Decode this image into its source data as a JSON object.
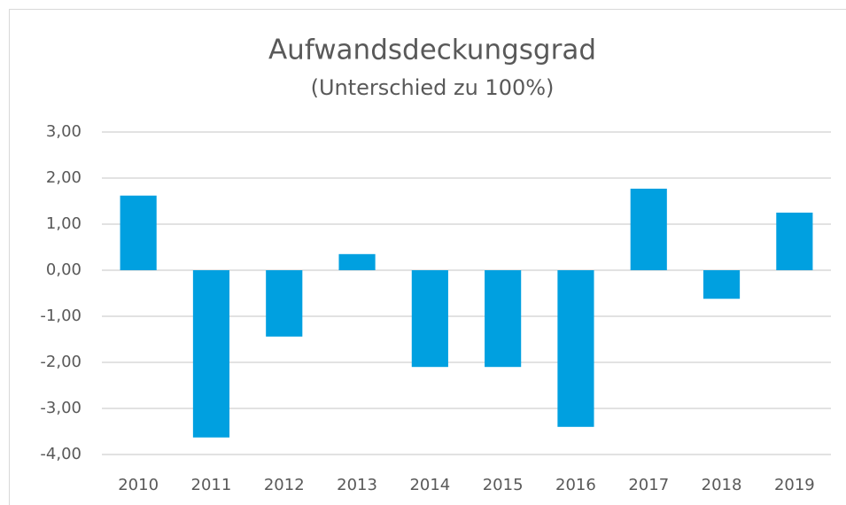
{
  "chart_data": {
    "type": "bar",
    "title": "Aufwandsdeckungsgrad",
    "subtitle": "(Unterschied zu 100%)",
    "categories": [
      "2010",
      "2011",
      "2012",
      "2013",
      "2014",
      "2015",
      "2016",
      "2017",
      "2018",
      "2019"
    ],
    "values": [
      1.62,
      -3.63,
      -1.44,
      0.35,
      -2.1,
      -2.1,
      -3.4,
      1.77,
      -0.62,
      1.25
    ],
    "color": "#00a0e0",
    "ylim": [
      -4,
      3
    ],
    "yticks": [
      {
        "value": 3,
        "label": "3,00"
      },
      {
        "value": 2,
        "label": "2,00"
      },
      {
        "value": 1,
        "label": "1,00"
      },
      {
        "value": 0,
        "label": "0,00"
      },
      {
        "value": -1,
        "label": "-1,00"
      },
      {
        "value": -2,
        "label": "-2,00"
      },
      {
        "value": -3,
        "label": "-3,00"
      },
      {
        "value": -4,
        "label": "-4,00"
      }
    ],
    "grid": true
  }
}
